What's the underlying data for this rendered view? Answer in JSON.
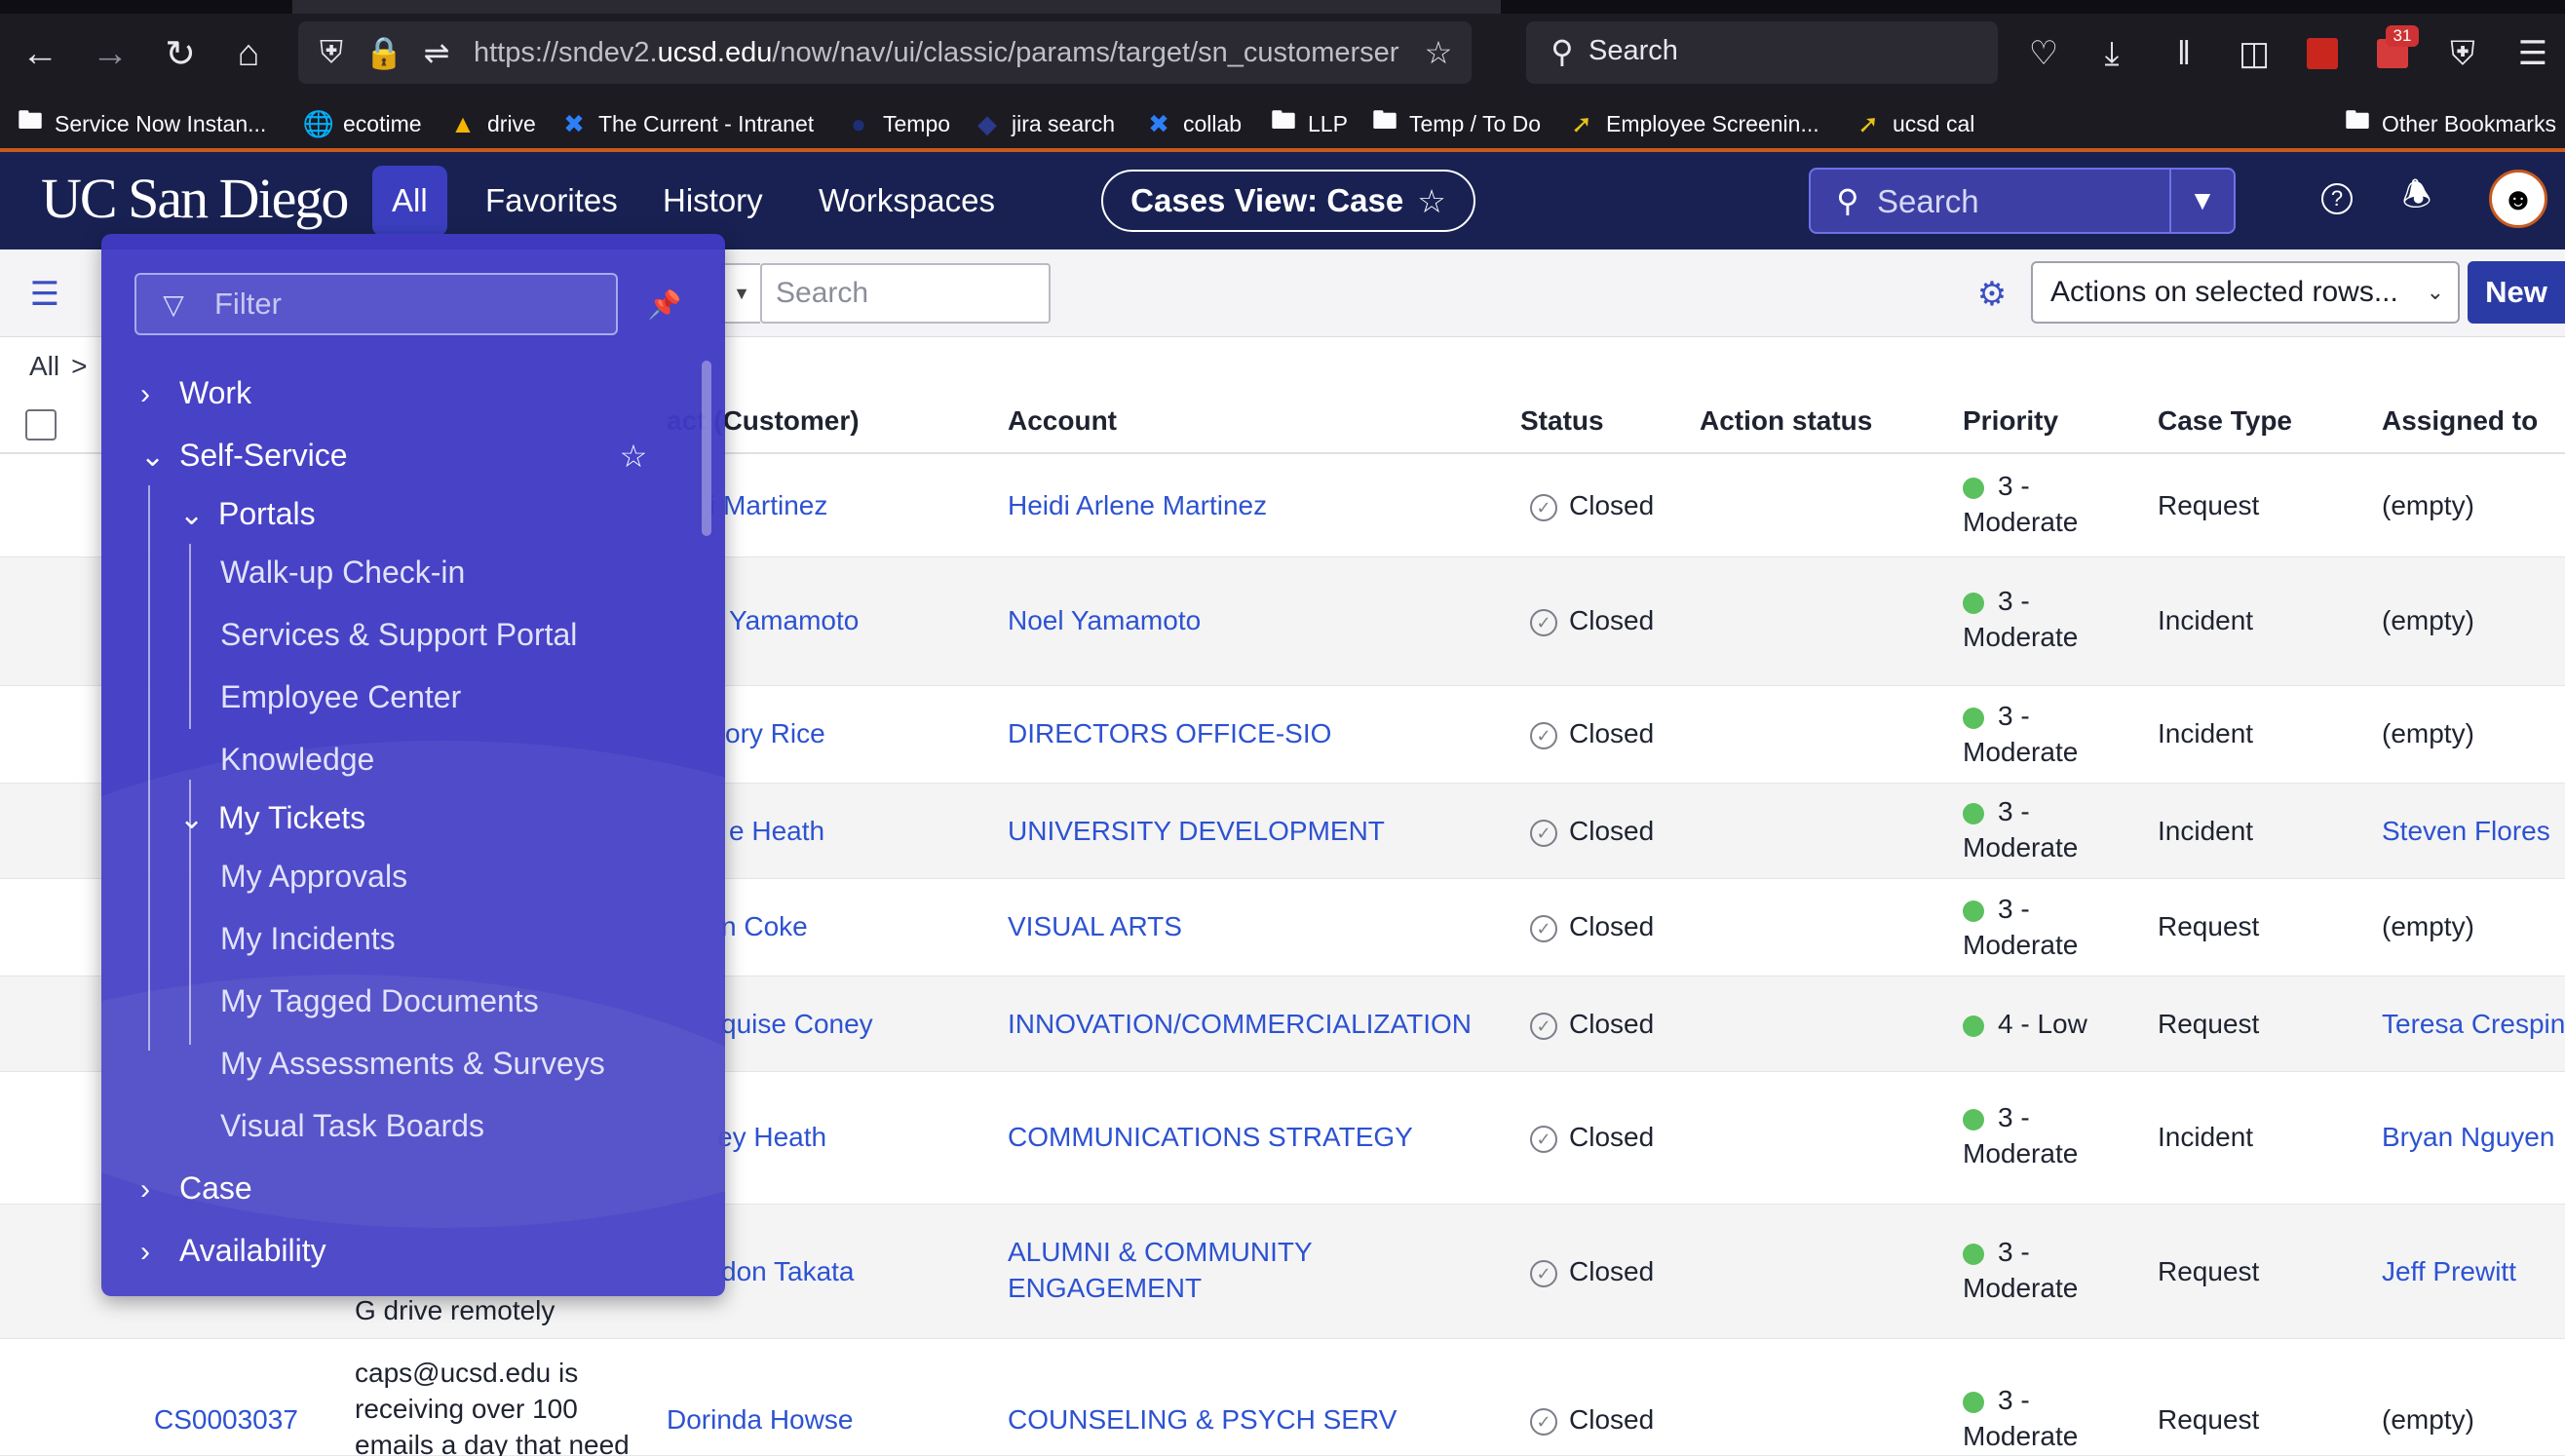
{
  "browser": {
    "url_prefix": "https://sndev2.",
    "url_host": "ucsd.edu",
    "url_path": "/now/nav/ui/classic/params/target/sn_customerservice",
    "search_label": "Search",
    "notif_count": "31",
    "bookmarks": [
      {
        "label": "Service Now Instan...",
        "icon": "folder-icon"
      },
      {
        "label": "ecotime",
        "icon": "globe-icon"
      },
      {
        "label": "drive",
        "icon": "drive-icon"
      },
      {
        "label": "The Current - Intranet",
        "icon": "confluence-icon"
      },
      {
        "label": "Tempo",
        "icon": "tempo-icon"
      },
      {
        "label": "jira search",
        "icon": "jira-icon"
      },
      {
        "label": "collab",
        "icon": "confluence-icon"
      },
      {
        "label": "LLP",
        "icon": "folder-icon"
      },
      {
        "label": "Temp / To Do",
        "icon": "folder-icon"
      },
      {
        "label": "Employee Screenin...",
        "icon": "bookmark-icon"
      },
      {
        "label": "ucsd cal",
        "icon": "bookmark-icon"
      },
      {
        "label": "Other Bookmarks",
        "icon": "folder-icon"
      }
    ]
  },
  "header": {
    "logo": "UC San Diego",
    "nav": [
      "All",
      "Favorites",
      "History",
      "Workspaces"
    ],
    "context_title": "Cases View: Case",
    "search_placeholder": "Search"
  },
  "toolbar": {
    "search_placeholder": "Search",
    "actions_label": "Actions on selected rows...",
    "new_label": "New"
  },
  "breadcrumb": {
    "root": "All",
    "separator": ">"
  },
  "table": {
    "columns": [
      "act (Customer)",
      "Account",
      "Status",
      "Action status",
      "Priority",
      "Case Type",
      "Assigned to"
    ],
    "rows": [
      {
        "contact": "i Martinez",
        "account": "Heidi Arlene Martinez",
        "status": "Closed",
        "priority": [
          "3 -",
          "Moderate"
        ],
        "case_type": "Request",
        "assigned": "(empty)",
        "assigned_link": false
      },
      {
        "contact": "Yamamoto",
        "account": "Noel Yamamoto",
        "status": "Closed",
        "priority": [
          "3 -",
          "Moderate"
        ],
        "case_type": "Incident",
        "assigned": "(empty)",
        "assigned_link": false
      },
      {
        "contact": "ory Rice",
        "account": "DIRECTORS OFFICE-SIO",
        "status": "Closed",
        "priority": [
          "3 -",
          "Moderate"
        ],
        "case_type": "Incident",
        "assigned": "(empty)",
        "assigned_link": false
      },
      {
        "contact": "e Heath",
        "account": "UNIVERSITY DEVELOPMENT",
        "status": "Closed",
        "priority": [
          "3 -",
          "Moderate"
        ],
        "case_type": "Incident",
        "assigned": "Steven Flores",
        "assigned_link": true
      },
      {
        "contact": "n Coke",
        "account": "VISUAL ARTS",
        "status": "Closed",
        "priority": [
          "3 -",
          "Moderate"
        ],
        "case_type": "Request",
        "assigned": "(empty)",
        "assigned_link": false
      },
      {
        "contact": "quise Coney",
        "account": "INNOVATION/COMMERCIALIZATION",
        "status": "Closed",
        "priority": [
          "4 - Low"
        ],
        "case_type": "Request",
        "assigned": "Teresa Crespin",
        "assigned_link": true
      },
      {
        "contact": "ey Heath",
        "account": "COMMUNICATIONS STRATEGY",
        "status": "Closed",
        "priority": [
          "3 -",
          "Moderate"
        ],
        "case_type": "Incident",
        "assigned": "Bryan Nguyen",
        "assigned_link": true
      },
      {
        "contact": "don Takata",
        "account": "ALUMNI & COMMUNITY ENGAGEMENT",
        "status": "Closed",
        "priority": [
          "3 -",
          "Moderate"
        ],
        "case_type": "Request",
        "assigned": "Jeff Prewitt",
        "assigned_link": true
      },
      {
        "number": "CS0003037",
        "description": "caps@ucsd.edu is receiving over 100 emails a day that need",
        "contact": "Dorinda Howse",
        "account": "COUNSELING & PSYCH SERV",
        "status": "Closed",
        "priority": [
          "3 -",
          "Moderate"
        ],
        "case_type": "Request",
        "assigned": "(empty)",
        "assigned_link": false
      }
    ],
    "partial_text": "G drive remotely"
  },
  "flyout": {
    "filter_placeholder": "Filter",
    "items": [
      {
        "label": "Work",
        "level": 0,
        "chevron": "right"
      },
      {
        "label": "Self-Service",
        "level": 0,
        "chevron": "down"
      },
      {
        "label": "Portals",
        "level": 1,
        "chevron": "down"
      },
      {
        "label": "Walk-up Check-in",
        "level": 2
      },
      {
        "label": "Services & Support Portal",
        "level": 2
      },
      {
        "label": "Employee Center",
        "level": 2
      },
      {
        "label": "Knowledge",
        "level": 2
      },
      {
        "label": "My Tickets",
        "level": 1,
        "chevron": "down"
      },
      {
        "label": "My Approvals",
        "level": 2
      },
      {
        "label": "My Incidents",
        "level": 2
      },
      {
        "label": "My Tagged Documents",
        "level": 2
      },
      {
        "label": "My Assessments & Surveys",
        "level": 2
      },
      {
        "label": "Visual Task Boards",
        "level": 2
      },
      {
        "label": "Case",
        "level": 0,
        "chevron": "right"
      },
      {
        "label": "Availability",
        "level": 0,
        "chevron": "right"
      }
    ]
  },
  "colors": {
    "header_bg": "#182152",
    "accent_orange": "#c85a1e",
    "flyout_bg": "#403ac4",
    "link_blue": "#2d52d1",
    "priority_moderate": "#5bc05e"
  }
}
